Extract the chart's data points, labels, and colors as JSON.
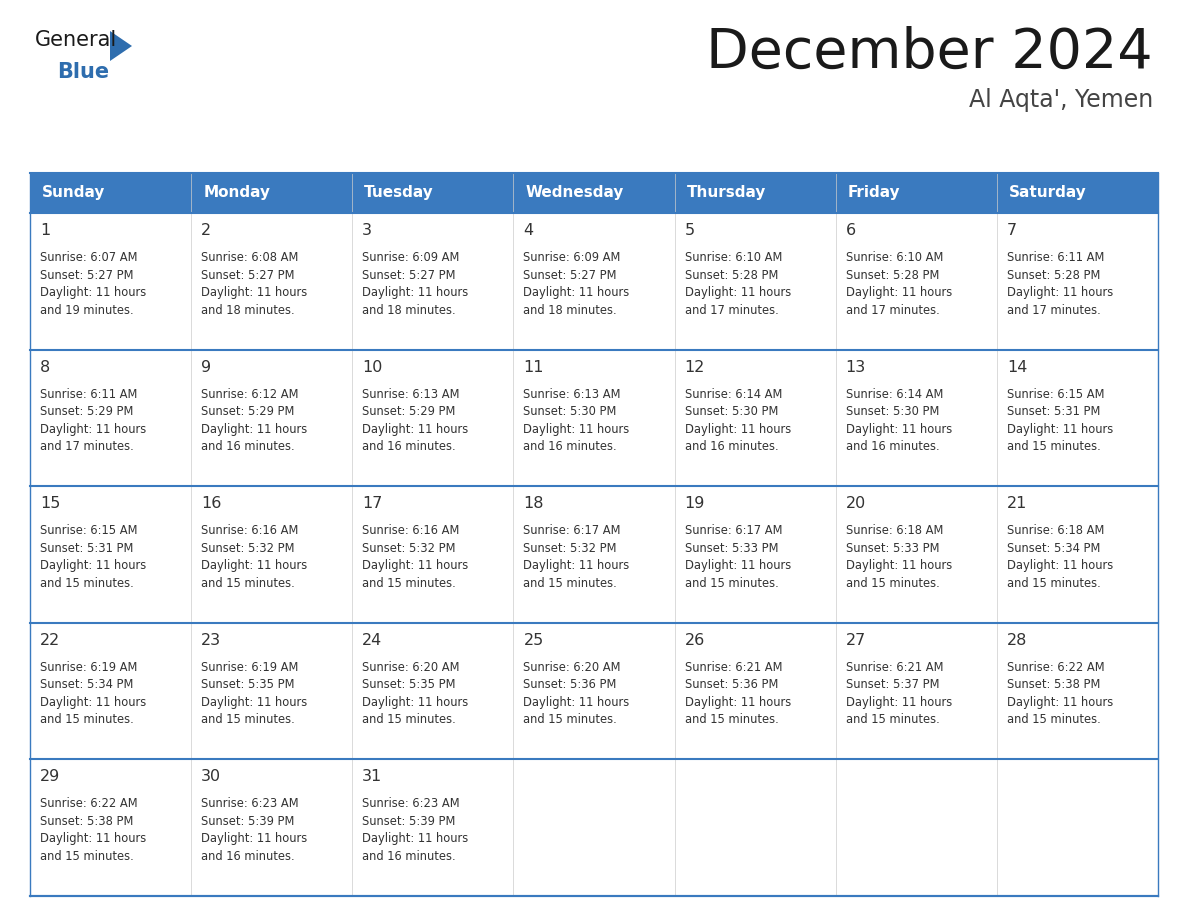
{
  "title": "December 2024",
  "subtitle": "Al Aqta', Yemen",
  "days_of_week": [
    "Sunday",
    "Monday",
    "Tuesday",
    "Wednesday",
    "Thursday",
    "Friday",
    "Saturday"
  ],
  "header_bg": "#3a7abf",
  "header_text": "#ffffff",
  "cell_bg": "#ffffff",
  "grid_line_color": "#3a7abf",
  "day_number_color": "#333333",
  "info_text_color": "#333333",
  "title_color": "#1a1a1a",
  "subtitle_color": "#444444",
  "logo_general_color": "#1a1a1a",
  "logo_blue_color": "#2e6dae",
  "weeks": [
    {
      "days": [
        {
          "date": 1,
          "sunrise": "6:07 AM",
          "sunset": "5:27 PM",
          "daylight_mins": "19 minutes."
        },
        {
          "date": 2,
          "sunrise": "6:08 AM",
          "sunset": "5:27 PM",
          "daylight_mins": "18 minutes."
        },
        {
          "date": 3,
          "sunrise": "6:09 AM",
          "sunset": "5:27 PM",
          "daylight_mins": "18 minutes."
        },
        {
          "date": 4,
          "sunrise": "6:09 AM",
          "sunset": "5:27 PM",
          "daylight_mins": "18 minutes."
        },
        {
          "date": 5,
          "sunrise": "6:10 AM",
          "sunset": "5:28 PM",
          "daylight_mins": "17 minutes."
        },
        {
          "date": 6,
          "sunrise": "6:10 AM",
          "sunset": "5:28 PM",
          "daylight_mins": "17 minutes."
        },
        {
          "date": 7,
          "sunrise": "6:11 AM",
          "sunset": "5:28 PM",
          "daylight_mins": "17 minutes."
        }
      ]
    },
    {
      "days": [
        {
          "date": 8,
          "sunrise": "6:11 AM",
          "sunset": "5:29 PM",
          "daylight_mins": "17 minutes."
        },
        {
          "date": 9,
          "sunrise": "6:12 AM",
          "sunset": "5:29 PM",
          "daylight_mins": "16 minutes."
        },
        {
          "date": 10,
          "sunrise": "6:13 AM",
          "sunset": "5:29 PM",
          "daylight_mins": "16 minutes."
        },
        {
          "date": 11,
          "sunrise": "6:13 AM",
          "sunset": "5:30 PM",
          "daylight_mins": "16 minutes."
        },
        {
          "date": 12,
          "sunrise": "6:14 AM",
          "sunset": "5:30 PM",
          "daylight_mins": "16 minutes."
        },
        {
          "date": 13,
          "sunrise": "6:14 AM",
          "sunset": "5:30 PM",
          "daylight_mins": "16 minutes."
        },
        {
          "date": 14,
          "sunrise": "6:15 AM",
          "sunset": "5:31 PM",
          "daylight_mins": "15 minutes."
        }
      ]
    },
    {
      "days": [
        {
          "date": 15,
          "sunrise": "6:15 AM",
          "sunset": "5:31 PM",
          "daylight_mins": "15 minutes."
        },
        {
          "date": 16,
          "sunrise": "6:16 AM",
          "sunset": "5:32 PM",
          "daylight_mins": "15 minutes."
        },
        {
          "date": 17,
          "sunrise": "6:16 AM",
          "sunset": "5:32 PM",
          "daylight_mins": "15 minutes."
        },
        {
          "date": 18,
          "sunrise": "6:17 AM",
          "sunset": "5:32 PM",
          "daylight_mins": "15 minutes."
        },
        {
          "date": 19,
          "sunrise": "6:17 AM",
          "sunset": "5:33 PM",
          "daylight_mins": "15 minutes."
        },
        {
          "date": 20,
          "sunrise": "6:18 AM",
          "sunset": "5:33 PM",
          "daylight_mins": "15 minutes."
        },
        {
          "date": 21,
          "sunrise": "6:18 AM",
          "sunset": "5:34 PM",
          "daylight_mins": "15 minutes."
        }
      ]
    },
    {
      "days": [
        {
          "date": 22,
          "sunrise": "6:19 AM",
          "sunset": "5:34 PM",
          "daylight_mins": "15 minutes."
        },
        {
          "date": 23,
          "sunrise": "6:19 AM",
          "sunset": "5:35 PM",
          "daylight_mins": "15 minutes."
        },
        {
          "date": 24,
          "sunrise": "6:20 AM",
          "sunset": "5:35 PM",
          "daylight_mins": "15 minutes."
        },
        {
          "date": 25,
          "sunrise": "6:20 AM",
          "sunset": "5:36 PM",
          "daylight_mins": "15 minutes."
        },
        {
          "date": 26,
          "sunrise": "6:21 AM",
          "sunset": "5:36 PM",
          "daylight_mins": "15 minutes."
        },
        {
          "date": 27,
          "sunrise": "6:21 AM",
          "sunset": "5:37 PM",
          "daylight_mins": "15 minutes."
        },
        {
          "date": 28,
          "sunrise": "6:22 AM",
          "sunset": "5:38 PM",
          "daylight_mins": "15 minutes."
        }
      ]
    },
    {
      "days": [
        {
          "date": 29,
          "sunrise": "6:22 AM",
          "sunset": "5:38 PM",
          "daylight_mins": "15 minutes."
        },
        {
          "date": 30,
          "sunrise": "6:23 AM",
          "sunset": "5:39 PM",
          "daylight_mins": "16 minutes."
        },
        {
          "date": 31,
          "sunrise": "6:23 AM",
          "sunset": "5:39 PM",
          "daylight_mins": "16 minutes."
        },
        null,
        null,
        null,
        null
      ]
    }
  ]
}
